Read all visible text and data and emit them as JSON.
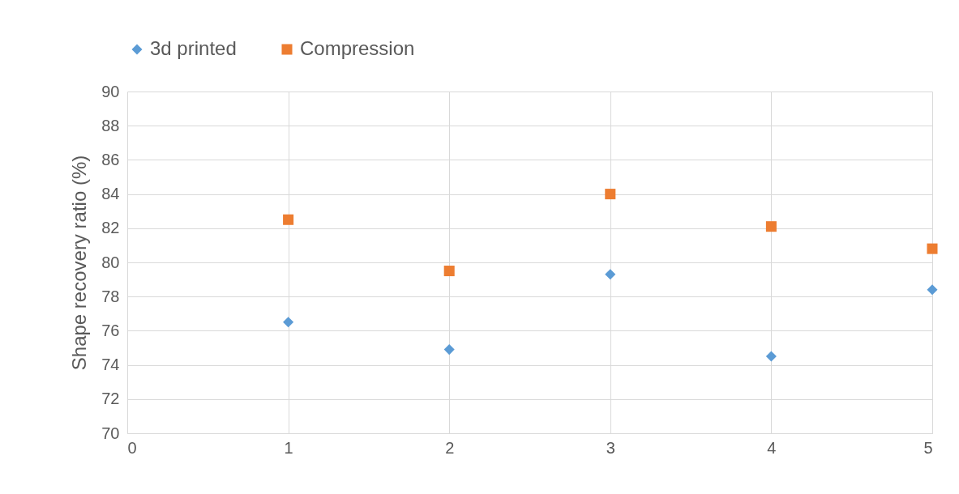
{
  "chart_data": {
    "type": "scatter",
    "ylabel": "Shape recovery ratio (%)",
    "x": [
      1,
      2,
      3,
      4,
      5
    ],
    "series": [
      {
        "name": "3d printed",
        "color": "#5b9bd5",
        "marker": "diamond",
        "values": [
          76.5,
          74.9,
          79.3,
          74.5,
          78.4
        ]
      },
      {
        "name": "Compression",
        "color": "#ed7d31",
        "marker": "square",
        "values": [
          82.5,
          79.5,
          84.0,
          82.1,
          80.8
        ]
      }
    ],
    "xlim": [
      0,
      5
    ],
    "xticks": [
      0,
      1,
      2,
      3,
      4,
      5
    ],
    "ylim": [
      70,
      90
    ],
    "yticks": [
      70,
      72,
      74,
      76,
      78,
      80,
      82,
      84,
      86,
      88,
      90
    ],
    "grid": true,
    "legend": "top"
  }
}
